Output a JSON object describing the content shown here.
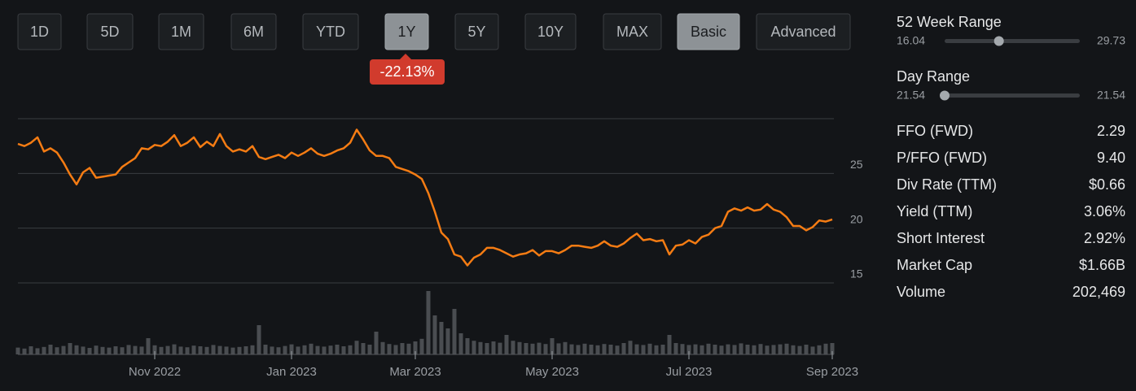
{
  "toolbar": {
    "buttons": [
      {
        "label": "1D",
        "active": false
      },
      {
        "label": "5D",
        "active": false
      },
      {
        "label": "1M",
        "active": false
      },
      {
        "label": "6M",
        "active": false
      },
      {
        "label": "YTD",
        "active": false
      },
      {
        "label": "1Y",
        "active": true
      },
      {
        "label": "5Y",
        "active": false
      },
      {
        "label": "10Y",
        "active": false
      },
      {
        "label": "MAX",
        "active": false
      },
      {
        "label": "Basic",
        "active": true
      },
      {
        "label": "Advanced",
        "active": false
      }
    ]
  },
  "change_badge": "-22.13%",
  "chart_data": {
    "type": "line",
    "color": "#f57c13",
    "values": [
      27.7,
      27.5,
      27.8,
      28.3,
      27.0,
      27.3,
      26.9,
      26.0,
      24.9,
      24.0,
      25.1,
      25.5,
      24.6,
      24.7,
      24.8,
      24.9,
      25.6,
      26.0,
      26.4,
      27.3,
      27.2,
      27.6,
      27.5,
      27.9,
      28.5,
      27.5,
      27.8,
      28.3,
      27.4,
      27.9,
      27.5,
      28.6,
      27.5,
      27.0,
      27.2,
      27.0,
      27.5,
      26.5,
      26.3,
      26.5,
      26.7,
      26.4,
      26.9,
      26.6,
      26.9,
      27.3,
      26.8,
      26.6,
      26.8,
      27.1,
      27.3,
      27.8,
      29.0,
      28.1,
      27.1,
      26.6,
      26.6,
      26.4,
      25.6,
      25.4,
      25.2,
      24.9,
      24.5,
      23.2,
      21.5,
      19.6,
      19.0,
      17.6,
      17.4,
      16.6,
      17.3,
      17.6,
      18.2,
      18.2,
      18.0,
      17.7,
      17.4,
      17.6,
      17.7,
      18.0,
      17.5,
      17.9,
      17.9,
      17.7,
      18.0,
      18.4,
      18.4,
      18.3,
      18.2,
      18.4,
      18.8,
      18.4,
      18.3,
      18.6,
      19.1,
      19.5,
      18.9,
      19.0,
      18.8,
      18.9,
      17.6,
      18.4,
      18.5,
      18.9,
      18.6,
      19.2,
      19.4,
      20.0,
      20.2,
      21.5,
      21.8,
      21.6,
      21.9,
      21.6,
      21.7,
      22.2,
      21.7,
      21.5,
      21.0,
      20.2,
      20.2,
      19.8,
      20.1,
      20.7,
      20.6,
      20.8
    ],
    "volume": {
      "color": "#4a4d51",
      "values": [
        210000,
        180000,
        250000,
        190000,
        230000,
        300000,
        220000,
        260000,
        350000,
        280000,
        240000,
        200000,
        270000,
        230000,
        210000,
        250000,
        220000,
        290000,
        260000,
        240000,
        500000,
        280000,
        230000,
        260000,
        310000,
        240000,
        220000,
        270000,
        250000,
        230000,
        290000,
        260000,
        240000,
        210000,
        230000,
        250000,
        280000,
        900000,
        300000,
        240000,
        220000,
        260000,
        310000,
        240000,
        280000,
        330000,
        260000,
        240000,
        270000,
        300000,
        250000,
        280000,
        420000,
        350000,
        300000,
        700000,
        380000,
        320000,
        290000,
        350000,
        330000,
        400000,
        480000,
        1950000,
        1200000,
        1000000,
        800000,
        1400000,
        650000,
        500000,
        420000,
        380000,
        350000,
        400000,
        360000,
        600000,
        420000,
        380000,
        350000,
        330000,
        360000,
        320000,
        500000,
        340000,
        380000,
        310000,
        290000,
        330000,
        300000,
        280000,
        320000,
        300000,
        270000,
        350000,
        420000,
        310000,
        290000,
        330000,
        280000,
        300000,
        600000,
        350000,
        320000,
        290000,
        310000,
        280000,
        330000,
        300000,
        270000,
        310000,
        290000,
        340000,
        300000,
        280000,
        320000,
        270000,
        290000,
        310000,
        330000,
        280000,
        260000,
        300000,
        240000,
        280000,
        330000,
        350000
      ]
    },
    "xlim": [
      0,
      125
    ],
    "xticks": [
      {
        "value": 21,
        "label": "Nov 2022"
      },
      {
        "value": 42,
        "label": "Jan 2023"
      },
      {
        "value": 61,
        "label": "Mar 2023"
      },
      {
        "value": 82,
        "label": "May 2023"
      },
      {
        "value": 103,
        "label": "Jul 2023"
      },
      {
        "value": 125,
        "label": "Sep 2023"
      }
    ],
    "ylim": [
      15,
      30
    ],
    "yticks": [
      15,
      20,
      25
    ],
    "grid": true,
    "y2lim": [
      0,
      2000000
    ]
  },
  "ranges": [
    {
      "label": "52 Week Range",
      "low": "16.04",
      "high": "29.73",
      "marker": 21.54
    },
    {
      "label": "Day Range",
      "low": "21.54",
      "high": "21.54",
      "marker": 21.54
    }
  ],
  "stats": [
    {
      "label": "FFO (FWD)",
      "value": "2.29"
    },
    {
      "label": "P/FFO (FWD)",
      "value": "9.40"
    },
    {
      "label": "Div Rate (TTM)",
      "value": "$0.66"
    },
    {
      "label": "Yield (TTM)",
      "value": "3.06%"
    },
    {
      "label": "Short Interest",
      "value": "2.92%"
    },
    {
      "label": "Market Cap",
      "value": "$1.66B"
    },
    {
      "label": "Volume",
      "value": "202,469"
    }
  ]
}
